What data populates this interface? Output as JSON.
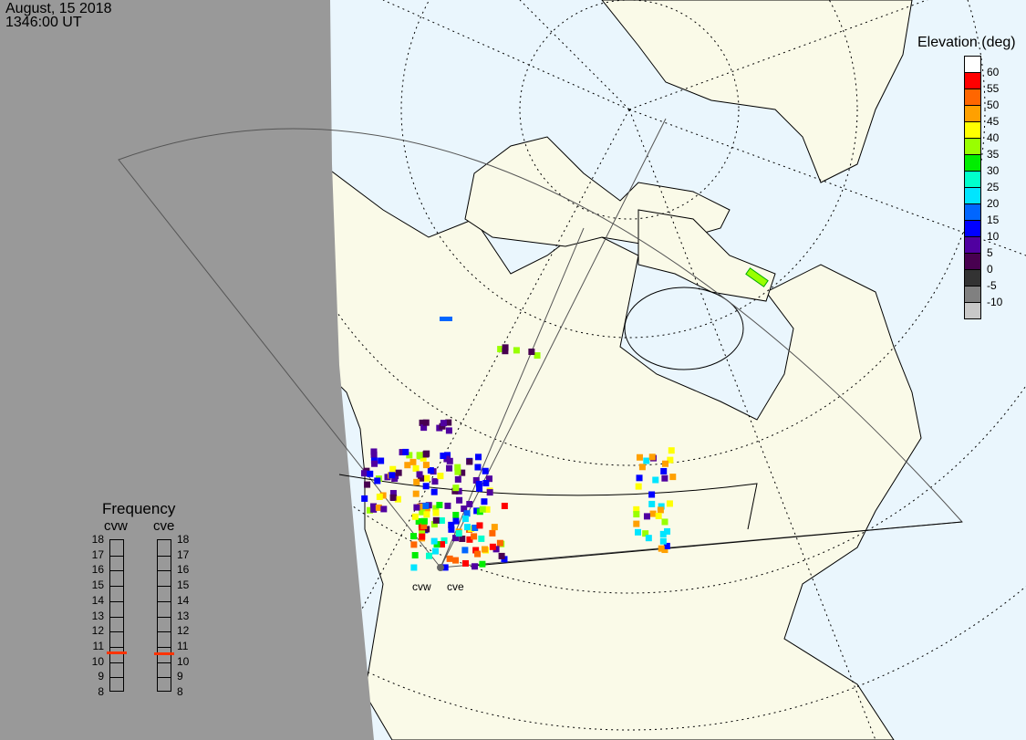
{
  "header": {
    "date": "August, 15 2018",
    "time": "1346:00 UT"
  },
  "radars": [
    {
      "code": "cvw",
      "frequency_mhz": 10.6
    },
    {
      "code": "cve",
      "frequency_mhz": 10.5
    }
  ],
  "legend": {
    "title": "Elevation (deg)",
    "ticks": [
      "60",
      "55",
      "50",
      "45",
      "40",
      "35",
      "30",
      "25",
      "20",
      "15",
      "10",
      "5",
      "0",
      "-5",
      "-10"
    ],
    "colors": [
      "#ffffff",
      "#ff0000",
      "#ff6600",
      "#ffa000",
      "#ffff00",
      "#99ff00",
      "#00ee00",
      "#00ffcc",
      "#00e5ff",
      "#0066ff",
      "#0000ff",
      "#5000a0",
      "#480050",
      "#333333",
      "#808080",
      "#c8c8c8"
    ]
  },
  "frequency_panel": {
    "title": "Frequency",
    "ticks": [
      "18",
      "17",
      "16",
      "15",
      "14",
      "13",
      "12",
      "11",
      "10",
      "9",
      "8"
    ],
    "range": [
      8,
      18
    ],
    "marker_color": "#ff3300"
  },
  "colors": {
    "night": "#999999",
    "ocean": "#eaf6fd",
    "land": "#fafae8"
  }
}
